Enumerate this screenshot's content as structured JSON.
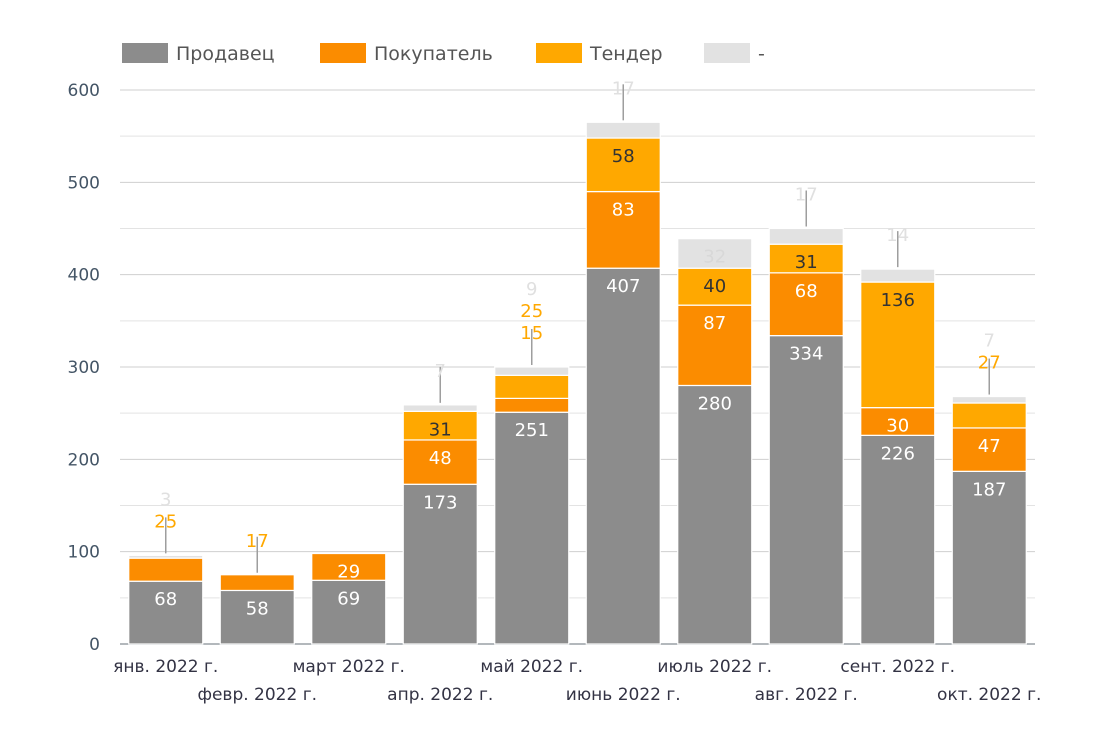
{
  "chart_data": {
    "type": "bar",
    "stacked": true,
    "title": "",
    "xlabel": "",
    "ylabel": "",
    "ylim": [
      0,
      600
    ],
    "yticks": [
      0,
      100,
      200,
      300,
      400,
      500,
      600
    ],
    "grid": true,
    "legend_position": "top-left",
    "categories": [
      "янв. 2022 г.",
      "февр. 2022 г.",
      "март 2022 г.",
      "апр. 2022 г.",
      "май 2022 г.",
      "июнь 2022 г.",
      "июль 2022 г.",
      "авг. 2022 г.",
      "сент. 2022 г.",
      "окт. 2022 г."
    ],
    "series": [
      {
        "name": "Продавец",
        "color": "#8c8c8c",
        "values": [
          68,
          58,
          69,
          173,
          251,
          407,
          280,
          334,
          226,
          187
        ]
      },
      {
        "name": "Покупатель",
        "color": "#fb8c00",
        "values": [
          25,
          17,
          29,
          48,
          15,
          83,
          87,
          68,
          30,
          47
        ]
      },
      {
        "name": "Тендер",
        "color": "#ffa800",
        "values": [
          0,
          0,
          0,
          31,
          25,
          58,
          40,
          31,
          136,
          27
        ]
      },
      {
        "name": "-",
        "color": "#e2e2e2",
        "values": [
          3,
          0,
          0,
          7,
          9,
          17,
          32,
          17,
          14,
          7
        ]
      }
    ]
  }
}
